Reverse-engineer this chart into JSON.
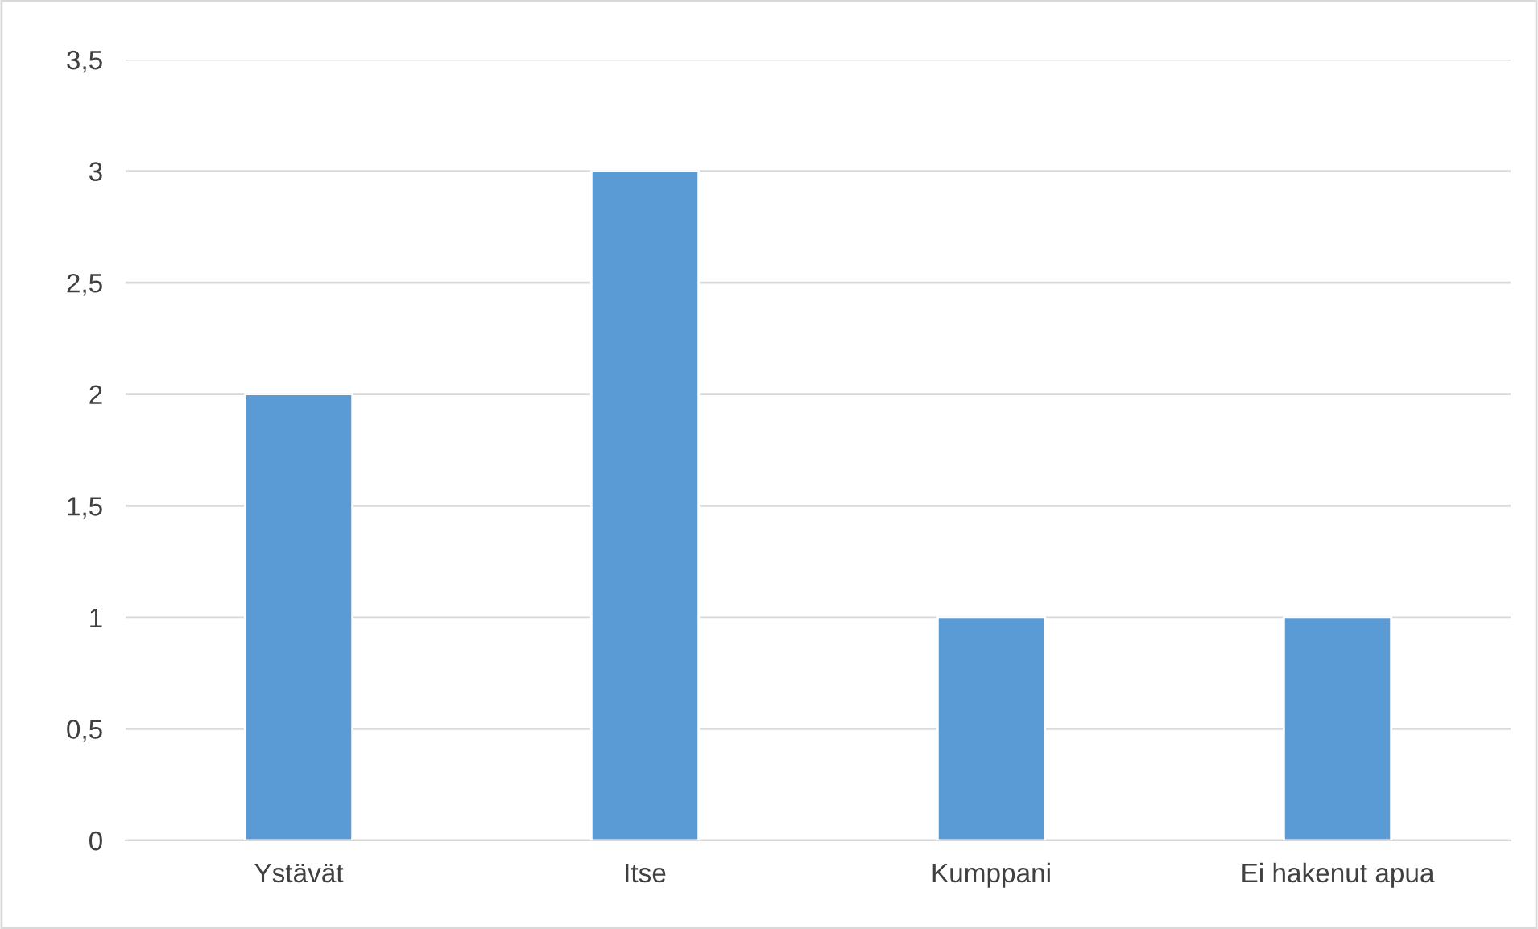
{
  "chart_data": {
    "type": "bar",
    "categories": [
      "Ystävät",
      "Itse",
      "Kumppani",
      "Ei hakenut apua"
    ],
    "values": [
      2,
      3,
      1,
      1
    ],
    "color": "#5b9bd5",
    "ylim": [
      0,
      3.5
    ],
    "yticks": [
      0,
      {
        "value": 0.5,
        "label": "0,5"
      },
      1,
      {
        "value": 1.5,
        "label": "1,5"
      },
      2,
      {
        "value": 2.5,
        "label": "2,5"
      },
      3,
      {
        "value": 3.5,
        "label": "3,5"
      }
    ],
    "grid": "y"
  }
}
